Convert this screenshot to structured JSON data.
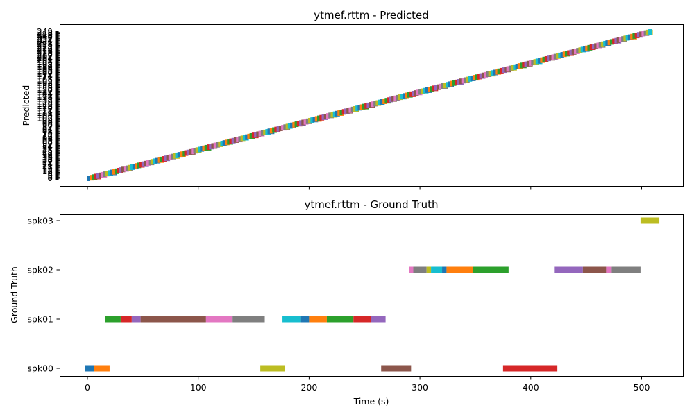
{
  "chart_data": [
    {
      "type": "timeline",
      "title": "ytmef.rttm - Predicted",
      "xlabel": "",
      "ylabel": "Predicted",
      "xlim": [
        -20,
        540
      ],
      "x_ticks": [
        0,
        100,
        200,
        300,
        400,
        500
      ],
      "x_tick_labels_shown": false,
      "y_tick_labels_note": "hundreds of overlapping illegible labels (one per predicted speaker); only '1' legible at top",
      "top_y_tick_label": "1",
      "segment_count": 250,
      "x_start": 0,
      "x_end": 512,
      "trend": "staircase of short segments, each on its own row, rising diagonally from bottom-left to top-right"
    },
    {
      "type": "timeline",
      "title": "ytmef.rttm - Ground Truth",
      "xlabel": "Time (s)",
      "ylabel": "Ground Truth",
      "xlim": [
        -20,
        540
      ],
      "x_ticks": [
        0,
        100,
        200,
        300,
        400,
        500
      ],
      "categories": [
        "spk00",
        "spk01",
        "spk02",
        "spk03"
      ],
      "segments": [
        {
          "speaker": "spk00",
          "start": -2,
          "end": 6,
          "color": "#1f77b4"
        },
        {
          "speaker": "spk00",
          "start": 6,
          "end": 20,
          "color": "#ff7f0e"
        },
        {
          "speaker": "spk00",
          "start": 156,
          "end": 178,
          "color": "#bcbd22"
        },
        {
          "speaker": "spk00",
          "start": 265,
          "end": 292,
          "color": "#8c564b"
        },
        {
          "speaker": "spk00",
          "start": 375,
          "end": 424,
          "color": "#d62728"
        },
        {
          "speaker": "spk01",
          "start": 16,
          "end": 30,
          "color": "#2ca02c"
        },
        {
          "speaker": "spk01",
          "start": 30,
          "end": 40,
          "color": "#d62728"
        },
        {
          "speaker": "spk01",
          "start": 40,
          "end": 48,
          "color": "#9467bd"
        },
        {
          "speaker": "spk01",
          "start": 48,
          "end": 107,
          "color": "#8c564b"
        },
        {
          "speaker": "spk01",
          "start": 107,
          "end": 131,
          "color": "#e377c2"
        },
        {
          "speaker": "spk01",
          "start": 131,
          "end": 160,
          "color": "#7f7f7f"
        },
        {
          "speaker": "spk01",
          "start": 176,
          "end": 192,
          "color": "#17becf"
        },
        {
          "speaker": "spk01",
          "start": 192,
          "end": 200,
          "color": "#1f77b4"
        },
        {
          "speaker": "spk01",
          "start": 200,
          "end": 216,
          "color": "#ff7f0e"
        },
        {
          "speaker": "spk01",
          "start": 216,
          "end": 240,
          "color": "#2ca02c"
        },
        {
          "speaker": "spk01",
          "start": 240,
          "end": 256,
          "color": "#d62728"
        },
        {
          "speaker": "spk01",
          "start": 256,
          "end": 269,
          "color": "#9467bd"
        },
        {
          "speaker": "spk02",
          "start": 290,
          "end": 294,
          "color": "#e377c2"
        },
        {
          "speaker": "spk02",
          "start": 294,
          "end": 306,
          "color": "#7f7f7f"
        },
        {
          "speaker": "spk02",
          "start": 306,
          "end": 310,
          "color": "#bcbd22"
        },
        {
          "speaker": "spk02",
          "start": 310,
          "end": 320,
          "color": "#17becf"
        },
        {
          "speaker": "spk02",
          "start": 320,
          "end": 324,
          "color": "#1f77b4"
        },
        {
          "speaker": "spk02",
          "start": 324,
          "end": 348,
          "color": "#ff7f0e"
        },
        {
          "speaker": "spk02",
          "start": 348,
          "end": 380,
          "color": "#2ca02c"
        },
        {
          "speaker": "spk02",
          "start": 421,
          "end": 447,
          "color": "#9467bd"
        },
        {
          "speaker": "spk02",
          "start": 447,
          "end": 468,
          "color": "#8c564b"
        },
        {
          "speaker": "spk02",
          "start": 468,
          "end": 473,
          "color": "#e377c2"
        },
        {
          "speaker": "spk02",
          "start": 473,
          "end": 499,
          "color": "#7f7f7f"
        },
        {
          "speaker": "spk03",
          "start": 499,
          "end": 516,
          "color": "#bcbd22"
        }
      ]
    }
  ],
  "palette": [
    "#1f77b4",
    "#ff7f0e",
    "#2ca02c",
    "#d62728",
    "#9467bd",
    "#8c564b",
    "#e377c2",
    "#7f7f7f",
    "#bcbd22",
    "#17becf"
  ]
}
